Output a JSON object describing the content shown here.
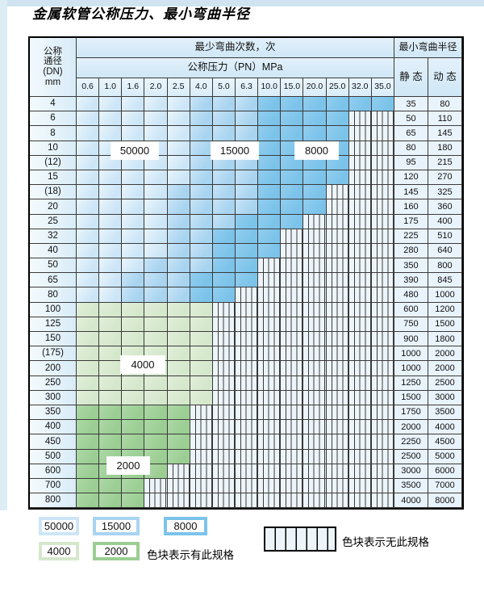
{
  "title": "金属软管公称压力、最小弯曲半径",
  "colors": {
    "blue_light": "#cde6f7",
    "blue_mid": "#a8d4f0",
    "blue_dark": "#7cc3ea",
    "green_light": "#d5e8cc",
    "green_mid": "#9bce93",
    "hatch_bg": "#edf5fb"
  },
  "table": {
    "corner_header": "公称\n通径\n(DN)\nmm",
    "bend_cycles_header": "最少弯曲次数，次",
    "pressure_header": "公称压力（PN）MPa",
    "radius_header": "最小弯曲半径",
    "static_header": "静 态",
    "dynamic_header": "动 态",
    "pressure_columns": [
      "0.6",
      "1.0",
      "1.6",
      "2.0",
      "2.5",
      "4.0",
      "5.0",
      "6.3",
      "10.0",
      "15.0",
      "20.0",
      "25.0",
      "32.0",
      "35.0"
    ],
    "band_shades": {
      "L": "50000 cycles (lightest blue)",
      "M": "15000 cycles (medium blue)",
      "D": "8000 cycles (dark blue)",
      "G": "4000 cycles (light green)",
      "g": "2000 cycles (medium green)",
      "H": "hatched – no such specification"
    },
    "rows": [
      {
        "dn": "4",
        "cells": "LLLLLMMMDDDDDD",
        "static": "35",
        "dynamic": "80"
      },
      {
        "dn": "6",
        "cells": "LLLLLMMMDDDDHH",
        "static": "50",
        "dynamic": "110"
      },
      {
        "dn": "8",
        "cells": "LLLLLMMMDDDDHH",
        "static": "65",
        "dynamic": "145"
      },
      {
        "dn": "10",
        "cells": "LLLLLMMMDDDDHH",
        "static": "80",
        "dynamic": "180"
      },
      {
        "dn": "(12)",
        "cells": "LLLLLMMMDDDDHH",
        "static": "95",
        "dynamic": "215"
      },
      {
        "dn": "15",
        "cells": "LLLLLMMMDDDDHH",
        "static": "120",
        "dynamic": "270"
      },
      {
        "dn": "(18)",
        "cells": "LLLLMMMMDDDHHH",
        "static": "145",
        "dynamic": "325"
      },
      {
        "dn": "20",
        "cells": "LLLLMMMMDDDHHH",
        "static": "160",
        "dynamic": "360"
      },
      {
        "dn": "25",
        "cells": "LLLLMMMDDDHHHH",
        "static": "175",
        "dynamic": "400"
      },
      {
        "dn": "32",
        "cells": "LLLLMMDDDHHHHH",
        "static": "225",
        "dynamic": "510"
      },
      {
        "dn": "40",
        "cells": "LLLLMMDDDHHHHH",
        "static": "280",
        "dynamic": "640"
      },
      {
        "dn": "50",
        "cells": "LLLMMMDDHHHHHH",
        "static": "350",
        "dynamic": "800"
      },
      {
        "dn": "65",
        "cells": "LLMMMDDDHHHHHH",
        "static": "390",
        "dynamic": "845"
      },
      {
        "dn": "80",
        "cells": "LLMMMDDHHHHHHH",
        "static": "480",
        "dynamic": "1000"
      },
      {
        "dn": "100",
        "cells": "GGGGGGHHHHHHHH",
        "static": "600",
        "dynamic": "1200"
      },
      {
        "dn": "125",
        "cells": "GGGGGGHHHHHHHH",
        "static": "750",
        "dynamic": "1500"
      },
      {
        "dn": "150",
        "cells": "GGGGGGHHHHHHHH",
        "static": "900",
        "dynamic": "1800"
      },
      {
        "dn": "(175)",
        "cells": "GGGGGGHHHHHHHH",
        "static": "1000",
        "dynamic": "2000"
      },
      {
        "dn": "200",
        "cells": "GGGGGGHHHHHHHH",
        "static": "1000",
        "dynamic": "2000"
      },
      {
        "dn": "250",
        "cells": "GGGGGGHHHHHHHH",
        "static": "1250",
        "dynamic": "2500"
      },
      {
        "dn": "300",
        "cells": "GGGGGGHHHHHHHH",
        "static": "1500",
        "dynamic": "3000"
      },
      {
        "dn": "350",
        "cells": "gggggHHHHHHHHH",
        "static": "1750",
        "dynamic": "3500"
      },
      {
        "dn": "400",
        "cells": "gggggHHHHHHHHH",
        "static": "2000",
        "dynamic": "4000"
      },
      {
        "dn": "450",
        "cells": "gggggHHHHHHHHH",
        "static": "2250",
        "dynamic": "4500"
      },
      {
        "dn": "500",
        "cells": "gggggHHHHHHHHH",
        "static": "2500",
        "dynamic": "5000"
      },
      {
        "dn": "600",
        "cells": "ggggHHHHHHHHHH",
        "static": "3000",
        "dynamic": "6000"
      },
      {
        "dn": "700",
        "cells": "gggHHHHHHHHHHH",
        "static": "3500",
        "dynamic": "7000"
      },
      {
        "dn": "800",
        "cells": "gggHHHHHHHHHHH",
        "static": "4000",
        "dynamic": "8000"
      }
    ],
    "band_value_labels": {
      "b50000": "50000",
      "b15000": "15000",
      "b8000": "8000",
      "b4000": "4000",
      "b2000": "2000"
    }
  },
  "legend": {
    "swatches": [
      {
        "value": "50000",
        "color_key": "blue_light"
      },
      {
        "value": "15000",
        "color_key": "blue_mid"
      },
      {
        "value": "8000",
        "color_key": "blue_dark"
      },
      {
        "value": "4000",
        "color_key": "green_light"
      },
      {
        "value": "2000",
        "color_key": "green_mid"
      }
    ],
    "has_spec_text": "色块表示有此规格",
    "no_spec_text": "色块表示无此规格"
  }
}
